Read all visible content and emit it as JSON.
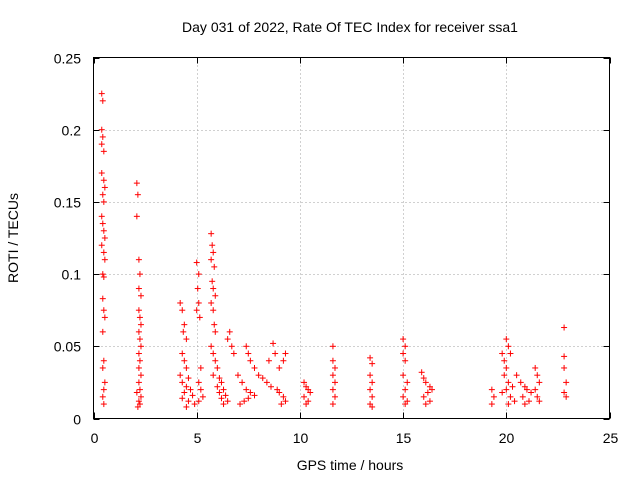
{
  "chart_data": {
    "type": "scatter",
    "title": "Day 031 of 2022, Rate Of TEC Index for receiver ssa1",
    "xlabel": "GPS time / hours",
    "ylabel": "ROTI / TECUs",
    "xlim": [
      0,
      25
    ],
    "ylim": [
      0,
      0.25
    ],
    "x_ticks": [
      0,
      5,
      10,
      15,
      20,
      25
    ],
    "x_tick_labels": [
      "0",
      "5",
      "10",
      "15",
      "20",
      "25"
    ],
    "y_ticks": [
      0,
      0.05,
      0.1,
      0.15,
      0.2,
      0.25
    ],
    "y_tick_labels": [
      "0",
      "0.05",
      "0.1",
      "0.15",
      "0.2",
      "0.25"
    ],
    "grid": true,
    "legend": "none",
    "marker": "plus",
    "marker_color": "#ff0000",
    "series": [
      {
        "points": [
          [
            0.4,
            0.225
          ],
          [
            0.45,
            0.22
          ],
          [
            0.4,
            0.2
          ],
          [
            0.45,
            0.195
          ],
          [
            0.4,
            0.19
          ],
          [
            0.5,
            0.185
          ],
          [
            0.4,
            0.17
          ],
          [
            0.5,
            0.165
          ],
          [
            0.55,
            0.16
          ],
          [
            0.45,
            0.155
          ],
          [
            0.5,
            0.15
          ],
          [
            0.4,
            0.14
          ],
          [
            0.45,
            0.135
          ],
          [
            0.5,
            0.13
          ],
          [
            0.55,
            0.125
          ],
          [
            0.4,
            0.12
          ],
          [
            0.5,
            0.115
          ],
          [
            0.55,
            0.11
          ],
          [
            0.45,
            0.1
          ],
          [
            0.5,
            0.098
          ],
          [
            0.45,
            0.083
          ],
          [
            0.5,
            0.075
          ],
          [
            0.55,
            0.07
          ],
          [
            0.45,
            0.06
          ],
          [
            0.5,
            0.04
          ],
          [
            0.45,
            0.035
          ],
          [
            0.55,
            0.025
          ],
          [
            0.5,
            0.02
          ],
          [
            0.45,
            0.015
          ],
          [
            0.5,
            0.01
          ],
          [
            2.1,
            0.163
          ],
          [
            2.15,
            0.155
          ],
          [
            2.1,
            0.14
          ],
          [
            2.2,
            0.11
          ],
          [
            2.25,
            0.1
          ],
          [
            2.2,
            0.09
          ],
          [
            2.3,
            0.085
          ],
          [
            2.2,
            0.075
          ],
          [
            2.25,
            0.07
          ],
          [
            2.3,
            0.065
          ],
          [
            2.2,
            0.06
          ],
          [
            2.25,
            0.055
          ],
          [
            2.3,
            0.05
          ],
          [
            2.2,
            0.045
          ],
          [
            2.25,
            0.04
          ],
          [
            2.2,
            0.035
          ],
          [
            2.3,
            0.03
          ],
          [
            2.2,
            0.025
          ],
          [
            2.25,
            0.02
          ],
          [
            2.1,
            0.018
          ],
          [
            2.3,
            0.015
          ],
          [
            2.2,
            0.012
          ],
          [
            2.25,
            0.01
          ],
          [
            2.15,
            0.008
          ],
          [
            4.2,
            0.08
          ],
          [
            4.3,
            0.075
          ],
          [
            4.4,
            0.065
          ],
          [
            4.35,
            0.06
          ],
          [
            4.5,
            0.055
          ],
          [
            4.3,
            0.045
          ],
          [
            4.4,
            0.04
          ],
          [
            4.5,
            0.035
          ],
          [
            4.2,
            0.03
          ],
          [
            4.6,
            0.028
          ],
          [
            4.3,
            0.025
          ],
          [
            4.5,
            0.022
          ],
          [
            4.7,
            0.02
          ],
          [
            4.4,
            0.018
          ],
          [
            4.8,
            0.016
          ],
          [
            4.3,
            0.014
          ],
          [
            4.6,
            0.012
          ],
          [
            4.9,
            0.01
          ],
          [
            4.5,
            0.008
          ],
          [
            5.0,
            0.108
          ],
          [
            5.1,
            0.1
          ],
          [
            5.05,
            0.09
          ],
          [
            5.1,
            0.08
          ],
          [
            5.0,
            0.075
          ],
          [
            5.15,
            0.07
          ],
          [
            5.2,
            0.035
          ],
          [
            5.1,
            0.025
          ],
          [
            5.2,
            0.02
          ],
          [
            5.3,
            0.015
          ],
          [
            5.1,
            0.012
          ],
          [
            5.7,
            0.128
          ],
          [
            5.75,
            0.12
          ],
          [
            5.8,
            0.115
          ],
          [
            5.7,
            0.11
          ],
          [
            5.85,
            0.105
          ],
          [
            5.75,
            0.095
          ],
          [
            5.8,
            0.09
          ],
          [
            5.9,
            0.085
          ],
          [
            5.7,
            0.08
          ],
          [
            5.8,
            0.075
          ],
          [
            5.85,
            0.065
          ],
          [
            5.9,
            0.06
          ],
          [
            5.7,
            0.05
          ],
          [
            5.8,
            0.045
          ],
          [
            5.9,
            0.04
          ],
          [
            6.0,
            0.035
          ],
          [
            5.8,
            0.03
          ],
          [
            6.1,
            0.028
          ],
          [
            6.2,
            0.025
          ],
          [
            6.0,
            0.022
          ],
          [
            6.3,
            0.02
          ],
          [
            6.1,
            0.018
          ],
          [
            6.4,
            0.016
          ],
          [
            6.2,
            0.014
          ],
          [
            6.5,
            0.012
          ],
          [
            6.3,
            0.01
          ],
          [
            6.6,
            0.06
          ],
          [
            6.5,
            0.055
          ],
          [
            6.7,
            0.05
          ],
          [
            6.8,
            0.045
          ],
          [
            7.0,
            0.03
          ],
          [
            7.2,
            0.025
          ],
          [
            7.4,
            0.02
          ],
          [
            7.6,
            0.018
          ],
          [
            7.8,
            0.016
          ],
          [
            7.5,
            0.014
          ],
          [
            7.3,
            0.012
          ],
          [
            7.1,
            0.01
          ],
          [
            7.4,
            0.05
          ],
          [
            7.5,
            0.045
          ],
          [
            7.6,
            0.04
          ],
          [
            7.8,
            0.035
          ],
          [
            8.0,
            0.03
          ],
          [
            8.2,
            0.028
          ],
          [
            8.4,
            0.025
          ],
          [
            8.6,
            0.022
          ],
          [
            8.7,
            0.052
          ],
          [
            8.8,
            0.045
          ],
          [
            8.5,
            0.04
          ],
          [
            8.9,
            0.02
          ],
          [
            9.0,
            0.018
          ],
          [
            9.2,
            0.015
          ],
          [
            9.3,
            0.012
          ],
          [
            9.1,
            0.01
          ],
          [
            9.3,
            0.045
          ],
          [
            9.2,
            0.04
          ],
          [
            9.0,
            0.035
          ],
          [
            10.2,
            0.025
          ],
          [
            10.3,
            0.022
          ],
          [
            10.4,
            0.02
          ],
          [
            10.5,
            0.018
          ],
          [
            10.2,
            0.015
          ],
          [
            10.4,
            0.012
          ],
          [
            10.3,
            0.01
          ],
          [
            11.6,
            0.05
          ],
          [
            11.6,
            0.04
          ],
          [
            11.7,
            0.035
          ],
          [
            11.6,
            0.03
          ],
          [
            11.7,
            0.025
          ],
          [
            11.6,
            0.02
          ],
          [
            11.7,
            0.015
          ],
          [
            11.6,
            0.01
          ],
          [
            13.4,
            0.042
          ],
          [
            13.5,
            0.038
          ],
          [
            13.4,
            0.03
          ],
          [
            13.5,
            0.025
          ],
          [
            13.4,
            0.02
          ],
          [
            13.5,
            0.015
          ],
          [
            13.4,
            0.01
          ],
          [
            13.5,
            0.008
          ],
          [
            15.0,
            0.055
          ],
          [
            15.1,
            0.05
          ],
          [
            15.0,
            0.045
          ],
          [
            15.1,
            0.04
          ],
          [
            15.0,
            0.03
          ],
          [
            15.2,
            0.025
          ],
          [
            15.1,
            0.02
          ],
          [
            15.0,
            0.015
          ],
          [
            15.2,
            0.012
          ],
          [
            15.1,
            0.01
          ],
          [
            15.9,
            0.032
          ],
          [
            16.0,
            0.028
          ],
          [
            16.1,
            0.025
          ],
          [
            16.3,
            0.022
          ],
          [
            16.4,
            0.02
          ],
          [
            16.2,
            0.018
          ],
          [
            16.0,
            0.015
          ],
          [
            16.3,
            0.012
          ],
          [
            16.1,
            0.01
          ],
          [
            19.3,
            0.02
          ],
          [
            19.4,
            0.015
          ],
          [
            19.3,
            0.01
          ],
          [
            19.8,
            0.045
          ],
          [
            19.9,
            0.04
          ],
          [
            20.0,
            0.055
          ],
          [
            20.1,
            0.05
          ],
          [
            20.2,
            0.045
          ],
          [
            20.0,
            0.035
          ],
          [
            19.9,
            0.03
          ],
          [
            20.1,
            0.025
          ],
          [
            20.3,
            0.022
          ],
          [
            20.0,
            0.02
          ],
          [
            19.8,
            0.018
          ],
          [
            20.2,
            0.015
          ],
          [
            20.4,
            0.012
          ],
          [
            20.1,
            0.01
          ],
          [
            20.5,
            0.03
          ],
          [
            20.7,
            0.025
          ],
          [
            20.9,
            0.022
          ],
          [
            21.0,
            0.02
          ],
          [
            21.2,
            0.018
          ],
          [
            20.8,
            0.015
          ],
          [
            21.1,
            0.012
          ],
          [
            20.9,
            0.01
          ],
          [
            21.4,
            0.035
          ],
          [
            21.5,
            0.03
          ],
          [
            21.6,
            0.025
          ],
          [
            21.4,
            0.02
          ],
          [
            21.5,
            0.015
          ],
          [
            21.6,
            0.012
          ],
          [
            22.8,
            0.063
          ],
          [
            22.8,
            0.043
          ],
          [
            22.8,
            0.035
          ],
          [
            22.9,
            0.025
          ],
          [
            22.8,
            0.018
          ],
          [
            22.9,
            0.015
          ]
        ]
      }
    ]
  }
}
